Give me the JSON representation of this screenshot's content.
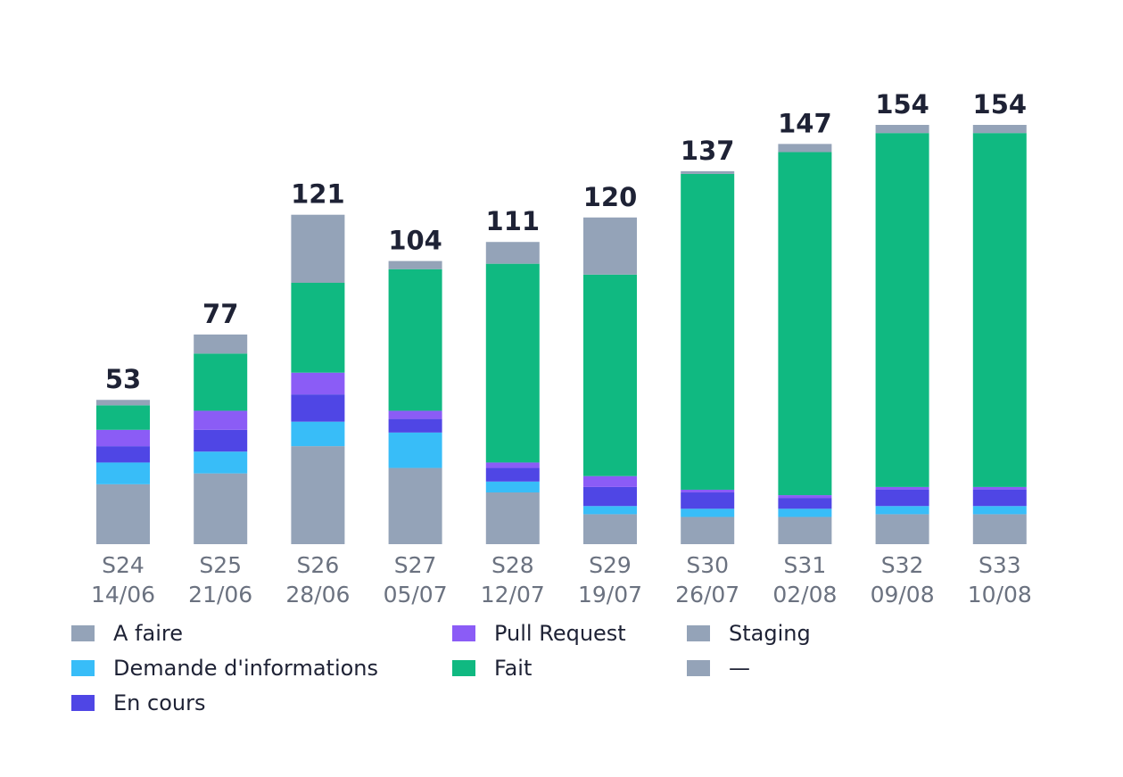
{
  "chart_data": {
    "type": "bar",
    "stacked": true,
    "grid": false,
    "legend_position": "bottom",
    "categories": [
      "S24",
      "S25",
      "S26",
      "S27",
      "S28",
      "S29",
      "S30",
      "S31",
      "S32",
      "S33"
    ],
    "category_dates": [
      "14/06",
      "21/06",
      "28/06",
      "05/07",
      "12/07",
      "19/07",
      "26/07",
      "02/08",
      "09/08",
      "10/08"
    ],
    "totals": [
      53,
      77,
      121,
      104,
      111,
      120,
      137,
      147,
      154,
      154
    ],
    "ylim": [
      0,
      154
    ],
    "series": [
      {
        "name": "A faire",
        "color": "#94a3b8",
        "values": [
          22,
          26,
          36,
          28,
          19,
          11,
          10,
          10,
          11,
          11
        ]
      },
      {
        "name": "Demande d'informations",
        "color": "#38bdf8",
        "values": [
          8,
          8,
          9,
          13,
          4,
          3,
          3,
          3,
          3,
          3
        ]
      },
      {
        "name": "En cours",
        "color": "#4f46e5",
        "values": [
          6,
          8,
          10,
          5,
          5,
          7,
          6,
          4,
          6,
          6
        ]
      },
      {
        "name": "Pull Request",
        "color": "#8b5cf6",
        "values": [
          6,
          7,
          8,
          3,
          2,
          4,
          1,
          1,
          1,
          1
        ]
      },
      {
        "name": "Fait",
        "color": "#10b981",
        "values": [
          9,
          21,
          33,
          52,
          73,
          74,
          116,
          126,
          130,
          130
        ]
      },
      {
        "name": "Staging",
        "color": "#94a3b8",
        "values": [
          2,
          7,
          25,
          3,
          8,
          21,
          1,
          3,
          3,
          3
        ]
      },
      {
        "name": "—",
        "color": "#94a3b8",
        "values": [
          0,
          0,
          0,
          0,
          0,
          0,
          0,
          0,
          0,
          0
        ]
      }
    ]
  }
}
